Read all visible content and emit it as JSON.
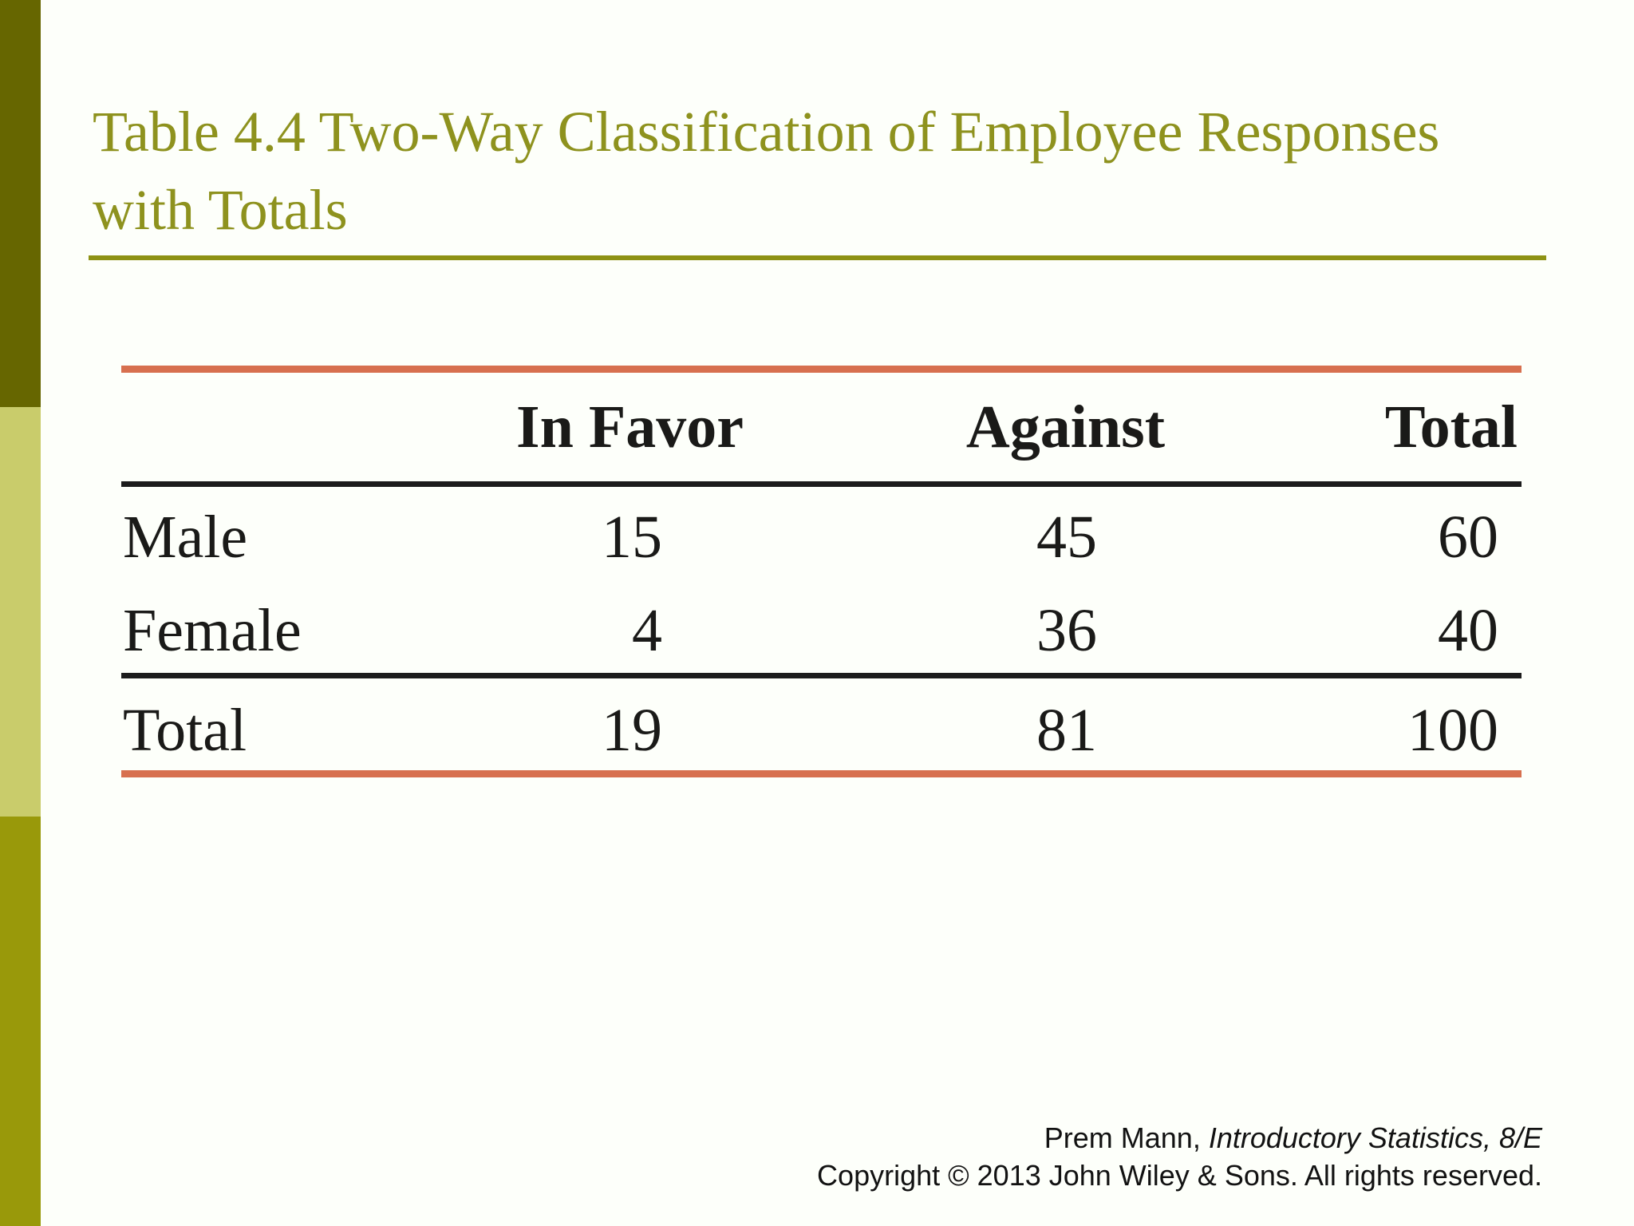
{
  "page": {
    "background_color": "#fdfffa",
    "kind": "presentation slide"
  },
  "sidebar": {
    "segments": [
      {
        "name": "top",
        "color": "#666600"
      },
      {
        "name": "middle",
        "color": "#c9cc6b"
      },
      {
        "name": "bottom",
        "color": "#99990a"
      }
    ]
  },
  "title": {
    "line1": "Table 4.4 Two-Way Classification of Employee Responses",
    "line2": "with Totals",
    "color": "#8e921e",
    "rule_color": "#8e9214"
  },
  "table": {
    "accent_line_color": "#d7704f",
    "rule_color": "#1c1c1c",
    "headers": {
      "col1": "",
      "col2": "In Favor",
      "col3": "Against",
      "col4": "Total"
    },
    "rows": [
      {
        "label": "Male",
        "in_favor": "15",
        "against": "45",
        "total": "60"
      },
      {
        "label": "Female",
        "in_favor": "4",
        "against": "36",
        "total": "40"
      },
      {
        "label": "Total",
        "in_favor": "19",
        "against": "81",
        "total": "100"
      }
    ]
  },
  "footer": {
    "credit_regular": "Prem Mann, ",
    "credit_italic": "Introductory Statistics, 8/E",
    "copyright": "Copyright © 2013 John Wiley & Sons. All rights reserved."
  },
  "chart_data": {
    "type": "table",
    "title": "Table 4.4 Two-Way Classification of Employee Responses with Totals",
    "columns": [
      "",
      "In Favor",
      "Against",
      "Total"
    ],
    "rows": [
      [
        "Male",
        15,
        45,
        60
      ],
      [
        "Female",
        4,
        36,
        40
      ],
      [
        "Total",
        19,
        81,
        100
      ]
    ]
  }
}
